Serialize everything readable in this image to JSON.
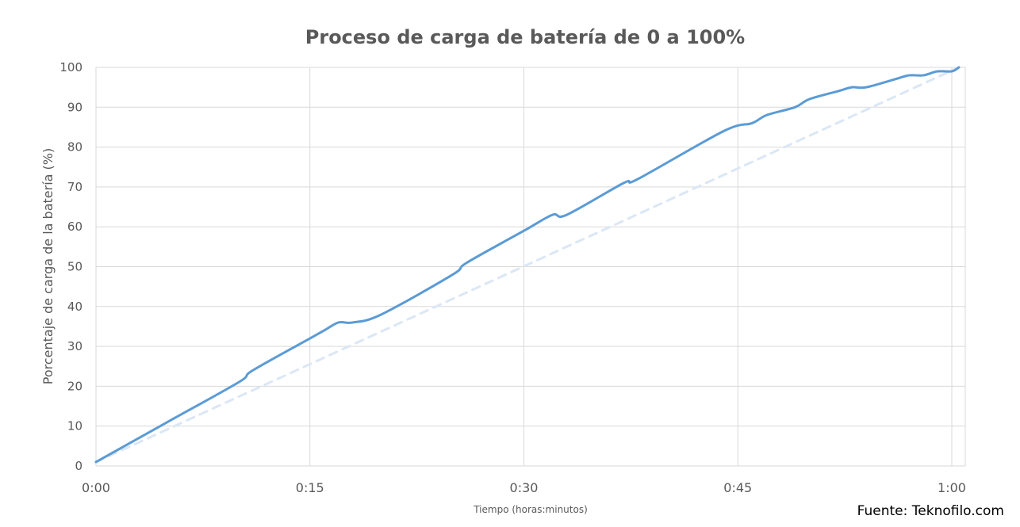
{
  "chart_data": {
    "type": "line",
    "title": "Proceso de carga de batería de 0 a 100%",
    "xlabel": "Tiempo (horas:minutos)",
    "ylabel": "Porcentaje de carga de la batería (%)",
    "x_ticks": [
      "0:00",
      "0:15",
      "0:30",
      "0:45",
      "1:00"
    ],
    "y_ticks": [
      "0",
      "10",
      "20",
      "30",
      "40",
      "50",
      "60",
      "70",
      "80",
      "90",
      "100"
    ],
    "xlim": [
      "0:00",
      "1:00"
    ],
    "ylim": [
      0,
      100
    ],
    "grid": true,
    "legend": "none",
    "series": [
      {
        "style": "solid",
        "color": "#5b9bd5",
        "x": [
          "0:00",
          "0:05",
          "0:10",
          "0:11",
          "0:15",
          "0:16",
          "0:17",
          "0:18",
          "0:20",
          "0:25",
          "0:26",
          "0:30",
          "0:32",
          "0:33",
          "0:37",
          "0:38",
          "0:44",
          "0:46",
          "0:47",
          "0:49",
          "0:50",
          "0:52",
          "0:53",
          "0:54",
          "0:56",
          "0:57",
          "0:58",
          "0:59",
          "1:00",
          "1:00.5"
        ],
        "y": [
          1,
          11,
          21,
          24,
          32,
          34,
          36,
          36,
          38,
          48,
          51,
          59,
          63,
          63,
          71,
          72,
          84,
          86,
          88,
          90,
          92,
          94,
          95,
          95,
          97,
          98,
          98,
          99,
          99,
          100
        ]
      },
      {
        "style": "dashed",
        "color": "#dbe7f5",
        "x": [
          "0:00",
          "1:00.5"
        ],
        "y": [
          1,
          100
        ]
      }
    ]
  },
  "source_note": "Fuente: Teknofilo.com"
}
